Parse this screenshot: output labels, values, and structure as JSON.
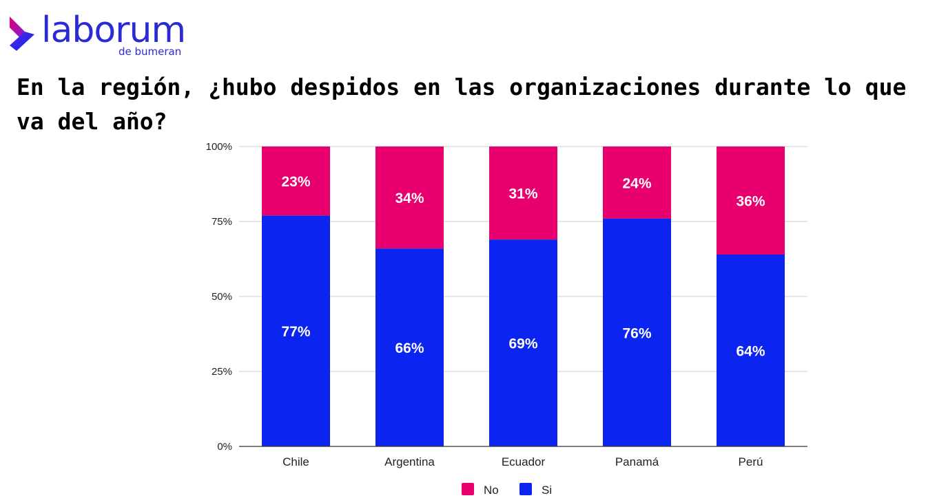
{
  "brand": {
    "name": "laborum",
    "sub": "de bumeran",
    "colors": {
      "primary": "#2b2bd6",
      "accent_top": "#e8006e",
      "accent_bottom": "#0c24ef"
    }
  },
  "chart_data": {
    "type": "bar",
    "stacked": true,
    "title": "En la región, ¿hubo despidos en las organizaciones durante lo que va del año?",
    "categories": [
      "Chile",
      "Argentina",
      "Ecuador",
      "Panamá",
      "Perú"
    ],
    "series": [
      {
        "name": "Si",
        "color": "#0c24ef",
        "values": [
          77,
          66,
          69,
          76,
          64
        ],
        "labels": [
          "77%",
          "66%",
          "69%",
          "76%",
          "64%"
        ]
      },
      {
        "name": "No",
        "color": "#e8006e",
        "values": [
          23,
          34,
          31,
          24,
          36
        ],
        "labels": [
          "23%",
          "34%",
          "31%",
          "24%",
          "36%"
        ]
      }
    ],
    "yticks": [
      "0%",
      "25%",
      "50%",
      "75%",
      "100%"
    ],
    "ylim": [
      0,
      100
    ],
    "grid": true,
    "legend": {
      "position": "bottom",
      "entries": [
        "No",
        "Si"
      ]
    }
  }
}
